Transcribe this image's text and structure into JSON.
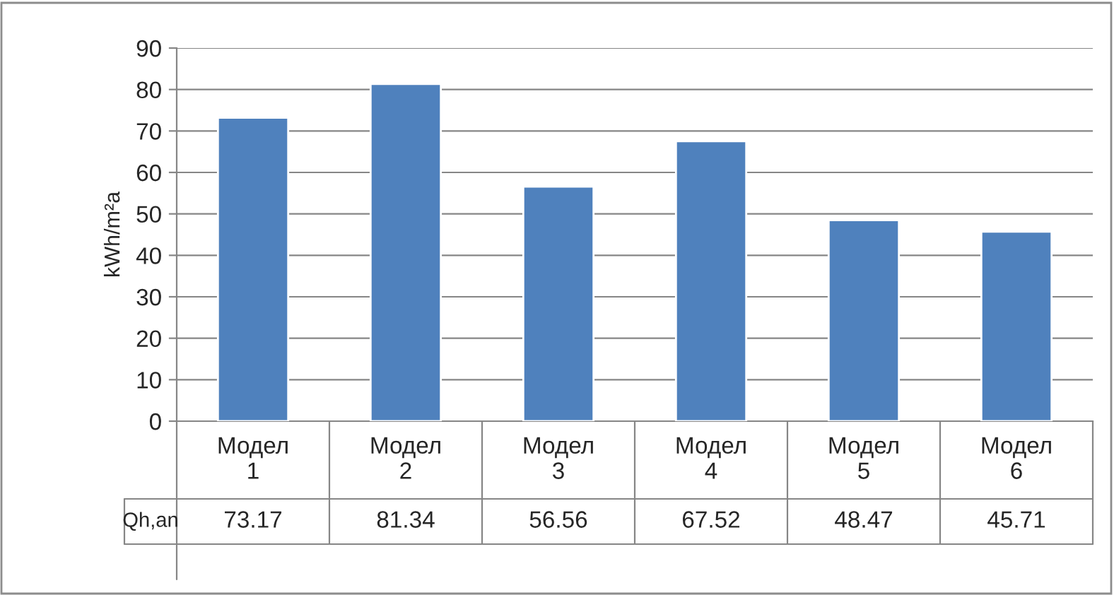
{
  "chart_data": {
    "type": "bar",
    "ylabel": "kWh/m²a",
    "categories": [
      "Модел 1",
      "Модел 2",
      "Модел 3",
      "Модел 4",
      "Модел 5",
      "Модел 6"
    ],
    "series": [
      {
        "name": "Qh,an",
        "color": "#4f81bd",
        "values": [
          73.17,
          81.34,
          56.56,
          67.52,
          48.47,
          45.71
        ]
      }
    ],
    "ylim": [
      0,
      90
    ],
    "yticks": [
      0,
      10,
      20,
      30,
      40,
      50,
      60,
      70,
      80,
      90
    ],
    "grid": "y",
    "data_labels": true,
    "legend": false
  }
}
